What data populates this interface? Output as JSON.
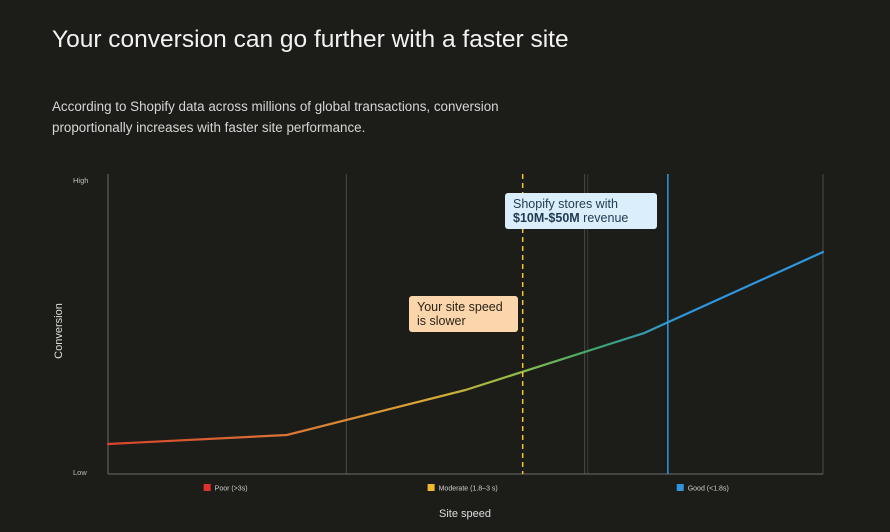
{
  "header": {
    "title": "Your conversion can go further with a faster site",
    "subtitle": "According to Shopify data across millions of global transactions, conversion proportionally increases with faster site performance."
  },
  "chart_data": {
    "type": "line",
    "title": "",
    "xlabel": "Site speed",
    "ylabel": "Conversion",
    "y_ticks": {
      "high": "High",
      "low": "Low"
    },
    "x": [
      0,
      0.25,
      0.5,
      0.75,
      1.0
    ],
    "series": [
      {
        "values": [
          0.1,
          0.13,
          0.28,
          0.47,
          0.74
        ]
      }
    ],
    "ylim": [
      0,
      1
    ],
    "xlim": [
      0,
      1
    ],
    "grid": "vertical",
    "segments": [
      {
        "label": "Poor (>3s)",
        "color": "#e0312b"
      },
      {
        "label": "Moderate (1.8–3 s)",
        "color": "#f0b72f"
      },
      {
        "label": "Good (<1.8s)",
        "color": "#2f96de"
      }
    ],
    "line_colors": [
      "#d8432d",
      "#d87436",
      "#d9a835",
      "#8cbe4a",
      "#3fa36a",
      "#2f96de"
    ],
    "markers": [
      {
        "x": 0.58,
        "style": "dashed",
        "color": "#f4c33d",
        "label": "Your site speed is slower"
      },
      {
        "x": 0.783,
        "style": "solid",
        "color": "#2f96de",
        "label_line1": "Shopify stores with",
        "label_line2_strong": "$10M-$50M",
        "label_line2_rest": " revenue"
      }
    ]
  }
}
